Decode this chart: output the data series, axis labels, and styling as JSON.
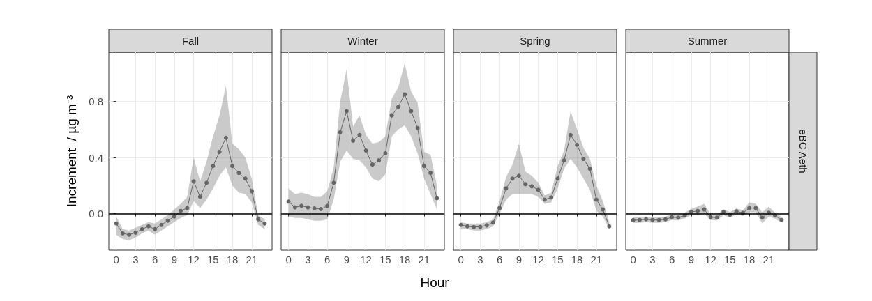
{
  "chart_data": [
    {
      "type": "line",
      "title": "Fall",
      "ylabel": "Increment  / µg m⁻³",
      "x": [
        0,
        1,
        2,
        3,
        4,
        5,
        6,
        7,
        8,
        9,
        10,
        11,
        12,
        13,
        14,
        15,
        16,
        17,
        18,
        19,
        20,
        21,
        22,
        23
      ],
      "xlim": [
        -1.15,
        24.15
      ],
      "xticks": [
        0,
        3,
        6,
        9,
        12,
        15,
        18,
        21
      ],
      "ylim": [
        -0.26,
        1.15
      ],
      "yticks": [
        {
          "value": 0,
          "label": "0.0"
        },
        {
          "value": 0.4,
          "label": "0.4"
        },
        {
          "value": 0.8,
          "label": "0.8"
        }
      ],
      "grid": true,
      "marker": "circle",
      "ref_lines": [
        {
          "axis": "y",
          "value": 0,
          "color": "#000000"
        }
      ],
      "series": [
        {
          "color": "#666666",
          "values": [
            -0.07,
            -0.14,
            -0.15,
            -0.135,
            -0.11,
            -0.09,
            -0.11,
            -0.08,
            -0.05,
            -0.02,
            0.02,
            0.04,
            0.23,
            0.12,
            0.22,
            0.34,
            0.44,
            0.54,
            0.34,
            0.29,
            0.25,
            0.16,
            -0.04,
            -0.07
          ],
          "lower": [
            -0.15,
            -0.18,
            -0.19,
            -0.17,
            -0.14,
            -0.12,
            -0.15,
            -0.12,
            -0.09,
            -0.06,
            -0.03,
            -0.01,
            0.09,
            0.04,
            0.1,
            0.18,
            0.27,
            0.33,
            0.2,
            0.15,
            0.14,
            0.08,
            -0.08,
            -0.11
          ],
          "upper": [
            -0.02,
            -0.11,
            -0.12,
            -0.1,
            -0.08,
            -0.06,
            -0.07,
            -0.04,
            -0.01,
            0.03,
            0.07,
            0.12,
            0.4,
            0.23,
            0.37,
            0.55,
            0.7,
            0.91,
            0.5,
            0.46,
            0.4,
            0.25,
            -0.01,
            -0.04
          ]
        }
      ]
    },
    {
      "type": "line",
      "title": "Winter",
      "xlabel": "Hour",
      "tick_labels": "x",
      "x": [
        0,
        1,
        2,
        3,
        4,
        5,
        6,
        7,
        8,
        9,
        10,
        11,
        12,
        13,
        14,
        15,
        16,
        17,
        18,
        19,
        20,
        21,
        22,
        23
      ],
      "xlim": [
        -1.15,
        24.15
      ],
      "xticks": [
        0,
        3,
        6,
        9,
        12,
        15,
        18,
        21
      ],
      "ylim": [
        -0.26,
        1.15
      ],
      "yticks": [
        0,
        0.4,
        0.8
      ],
      "grid": true,
      "marker": "circle",
      "ref_lines": [
        {
          "axis": "y",
          "value": 0,
          "color": "#000000"
        }
      ],
      "series": [
        {
          "color": "#666666",
          "values": [
            0.086,
            0.045,
            0.056,
            0.045,
            0.038,
            0.033,
            0.055,
            0.22,
            0.58,
            0.73,
            0.52,
            0.56,
            0.45,
            0.35,
            0.38,
            0.43,
            0.7,
            0.76,
            0.85,
            0.73,
            0.61,
            0.34,
            0.29,
            0.11
          ],
          "lower": [
            -0.02,
            -0.03,
            -0.03,
            -0.04,
            -0.05,
            -0.05,
            -0.04,
            0.1,
            0.37,
            0.45,
            0.39,
            0.38,
            0.33,
            0.25,
            0.23,
            0.28,
            0.55,
            0.6,
            0.63,
            0.55,
            0.43,
            0.25,
            0.14,
            0.03
          ],
          "upper": [
            0.18,
            0.14,
            0.15,
            0.14,
            0.12,
            0.12,
            0.16,
            0.33,
            0.8,
            1.03,
            0.62,
            0.7,
            0.56,
            0.5,
            0.51,
            0.55,
            0.82,
            0.9,
            1.07,
            0.87,
            0.79,
            0.44,
            0.42,
            0.2
          ]
        }
      ]
    },
    {
      "type": "line",
      "title": "Spring",
      "tick_labels": "x",
      "x": [
        0,
        1,
        2,
        3,
        4,
        5,
        6,
        7,
        8,
        9,
        10,
        11,
        12,
        13,
        14,
        15,
        16,
        17,
        18,
        19,
        20,
        21,
        22,
        23
      ],
      "xlim": [
        -1.15,
        24.15
      ],
      "xticks": [
        0,
        3,
        6,
        9,
        12,
        15,
        18,
        21
      ],
      "ylim": [
        -0.26,
        1.15
      ],
      "yticks": [
        0,
        0.4,
        0.8
      ],
      "grid": true,
      "marker": "circle",
      "ref_lines": [
        {
          "axis": "y",
          "value": 0,
          "color": "#000000"
        }
      ],
      "series": [
        {
          "color": "#666666",
          "values": [
            -0.08,
            -0.09,
            -0.095,
            -0.094,
            -0.083,
            -0.063,
            0.04,
            0.18,
            0.25,
            0.27,
            0.21,
            0.195,
            0.17,
            0.1,
            0.115,
            0.25,
            0.38,
            0.56,
            0.49,
            0.39,
            0.32,
            0.1,
            0.03,
            -0.09
          ],
          "lower": [
            -0.11,
            -0.11,
            -0.12,
            -0.12,
            -0.11,
            -0.09,
            0,
            0.1,
            0.14,
            0.14,
            0.14,
            0.14,
            0.12,
            0.07,
            0.08,
            0.18,
            0.32,
            0.39,
            0.33,
            0.25,
            0.17,
            0.02,
            -0.02,
            -0.11
          ],
          "upper": [
            -0.06,
            -0.07,
            -0.07,
            -0.07,
            -0.06,
            -0.04,
            0.09,
            0.26,
            0.35,
            0.5,
            0.3,
            0.27,
            0.22,
            0.13,
            0.15,
            0.34,
            0.45,
            0.73,
            0.6,
            0.47,
            0.39,
            0.2,
            0.09,
            -0.06
          ]
        }
      ]
    },
    {
      "type": "line",
      "title": "Summer",
      "tick_labels": "x",
      "annotations": [
        "eBC Aeth"
      ],
      "x": [
        0,
        1,
        2,
        3,
        4,
        5,
        6,
        7,
        8,
        9,
        10,
        11,
        12,
        13,
        14,
        15,
        16,
        17,
        18,
        19,
        20,
        21,
        22,
        23
      ],
      "xlim": [
        -1.15,
        24.15
      ],
      "xticks": [
        0,
        3,
        6,
        9,
        12,
        15,
        18,
        21
      ],
      "ylim": [
        -0.26,
        1.15
      ],
      "yticks": [
        0,
        0.4,
        0.8
      ],
      "grid": true,
      "marker": "circle",
      "ref_lines": [
        {
          "axis": "y",
          "value": 0,
          "color": "#000000"
        }
      ],
      "series": [
        {
          "color": "#666666",
          "values": [
            -0.046,
            -0.045,
            -0.04,
            -0.045,
            -0.045,
            -0.04,
            -0.025,
            -0.028,
            -0.013,
            0.013,
            0.02,
            0.03,
            -0.025,
            -0.028,
            0.012,
            -0.008,
            0.017,
            0.005,
            0.04,
            0.04,
            -0.028,
            0.007,
            -0.013,
            -0.045
          ],
          "lower": [
            -0.066,
            -0.065,
            -0.06,
            -0.065,
            -0.065,
            -0.06,
            -0.045,
            -0.048,
            -0.033,
            -0.01,
            -0.01,
            0,
            -0.045,
            -0.048,
            -0.01,
            -0.028,
            -0.005,
            -0.015,
            0.01,
            0.01,
            -0.07,
            -0.02,
            -0.035,
            -0.065
          ],
          "upper": [
            -0.026,
            -0.025,
            -0.02,
            -0.025,
            -0.025,
            -0.02,
            -0.005,
            -0.008,
            0.007,
            0.035,
            0.05,
            0.07,
            -0.005,
            -0.008,
            0.032,
            0.012,
            0.037,
            0.025,
            0.08,
            0.07,
            0.01,
            0.05,
            0.007,
            -0.025
          ]
        }
      ]
    }
  ]
}
